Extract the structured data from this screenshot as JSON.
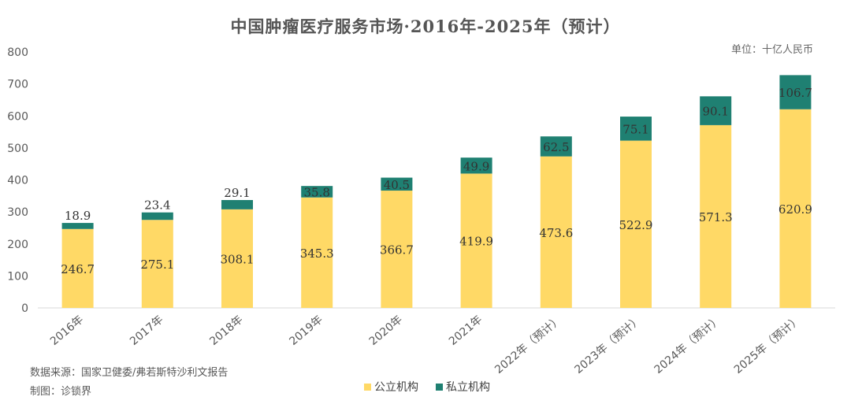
{
  "chart_data": {
    "type": "bar",
    "stacked": true,
    "title": "中国肿瘤医疗服务市场·2016年-2025年（预计）",
    "unit": "单位：十亿人民币",
    "categories": [
      "2016年",
      "2017年",
      "2018年",
      "2019年",
      "2020年",
      "2021年",
      "2022年（预计）",
      "2023年（预计）",
      "2024年（预计）",
      "2025年（预计）"
    ],
    "series": [
      {
        "name": "公立机构",
        "color": "#FFD966",
        "values": [
          246.7,
          275.1,
          308.1,
          345.3,
          366.7,
          419.9,
          473.6,
          522.9,
          571.3,
          620.9
        ]
      },
      {
        "name": "私立机构",
        "color": "#1F8072",
        "values": [
          18.9,
          23.4,
          29.1,
          35.8,
          40.5,
          49.9,
          62.5,
          75.1,
          90.1,
          106.7
        ]
      }
    ],
    "ylim": [
      0,
      800
    ],
    "yticks": [
      0,
      100,
      200,
      300,
      400,
      500,
      600,
      700,
      800
    ],
    "grid": false,
    "legend_position": "bottom"
  },
  "footer": {
    "source": "数据来源：国家卫健委/弗若斯特沙利文报告",
    "made_by": "制图：诊锁界"
  }
}
